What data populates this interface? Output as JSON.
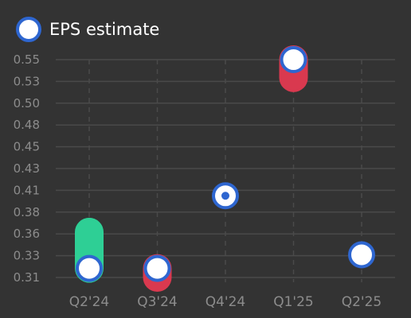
{
  "chart_data": {
    "type": "scatter",
    "legend": [
      {
        "label": "EPS estimate",
        "color": "#2e66d0"
      }
    ],
    "legend_position": "top-left",
    "categories": [
      "Q2'24",
      "Q3'24",
      "Q4'24",
      "Q1'25",
      "Q2'25"
    ],
    "y_ticks": [
      "0.31",
      "0.33",
      "0.36",
      "0.38",
      "0.41",
      "0.43",
      "0.45",
      "0.48",
      "0.50",
      "0.53",
      "0.55"
    ],
    "ylim": [
      0.305,
      0.555
    ],
    "grid": {
      "horizontal": true,
      "vertical_dashed": true
    },
    "series": [
      {
        "name": "EPS estimate",
        "values": [
          0.32,
          0.32,
          0.4,
          0.55,
          0.335
        ],
        "marker": "hollow-circle"
      }
    ],
    "actuals": [
      0.36,
      0.31,
      0.4,
      0.53,
      null
    ],
    "colors": {
      "background": "#333333",
      "beat": "#2ecf95",
      "miss": "#d9394f",
      "estimate_ring": "#2e66d0",
      "estimate_fill": "#ffffff",
      "grid": "#4a4a4a",
      "tick_text": "#8c8c8c",
      "legend_text": "#ffffff"
    }
  }
}
